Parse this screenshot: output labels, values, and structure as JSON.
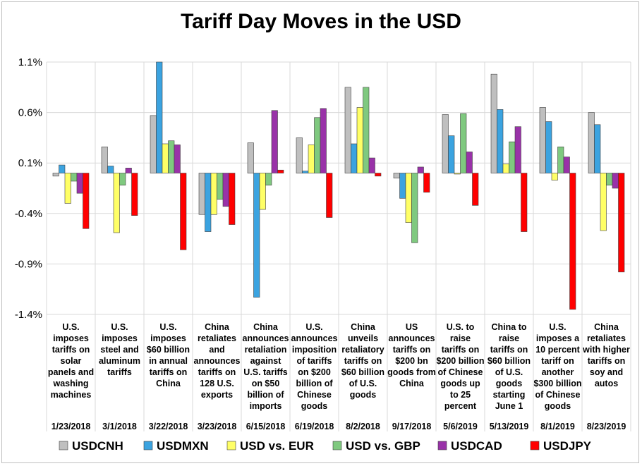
{
  "title": "Tariff Day Moves in the USD",
  "chart_data": {
    "type": "bar",
    "title": "Tariff Day Moves in the USD",
    "xlabel": "",
    "ylabel": "",
    "ylim": [
      -1.4,
      1.1
    ],
    "yticks": [
      1.1,
      0.6,
      0.1,
      -0.4,
      -0.9,
      -1.4
    ],
    "ytick_labels": [
      "1.1%",
      "0.6%",
      "0.1%",
      "-0.4%",
      "-0.9%",
      "-1.4%"
    ],
    "grid": true,
    "legend_position": "bottom",
    "categories": [
      {
        "date": "1/23/2018",
        "lines": [
          "U.S.",
          "imposes",
          "tariffs on",
          "solar",
          "panels and",
          "washing",
          "machines"
        ]
      },
      {
        "date": "3/1/2018",
        "lines": [
          "U.S.",
          "imposes",
          "steel and",
          "aluminum",
          "tariffs"
        ]
      },
      {
        "date": "3/22/2018",
        "lines": [
          "U.S.",
          "imposes",
          "$60 billion",
          "in annual",
          "tariffs on",
          "China"
        ]
      },
      {
        "date": "3/23/2018",
        "lines": [
          "China",
          "retaliates",
          "and",
          "announces",
          "tariffs on",
          "128 U.S.",
          "exports"
        ]
      },
      {
        "date": "6/15/2018",
        "lines": [
          "China",
          "announces",
          "retaliation",
          "against",
          "U.S. tariffs",
          "on $50",
          "billion of",
          "imports"
        ]
      },
      {
        "date": "6/19/2018",
        "lines": [
          "U.S.",
          "announces",
          "imposition",
          "of tariffs",
          "on $200",
          "billion of",
          "Chinese",
          "goods"
        ]
      },
      {
        "date": "8/2/2018",
        "lines": [
          "China",
          "unveils",
          "retaliatory",
          "tariffs on",
          "$60 billion",
          "of U.S.",
          "goods"
        ]
      },
      {
        "date": "9/17/2018",
        "lines": [
          "US",
          "announces",
          "tariffs on",
          "$200 bn",
          "goods from",
          "China"
        ]
      },
      {
        "date": "5/6/2019",
        "lines": [
          "U.S. to",
          "raise",
          "tariffs on",
          "$200 billion",
          "of Chinese",
          "goods up",
          "to 25",
          "percent"
        ]
      },
      {
        "date": "5/13/2019",
        "lines": [
          "China to",
          "raise",
          "tariffs on",
          "$60 billion",
          "of U.S.",
          "goods",
          "starting",
          "June 1"
        ]
      },
      {
        "date": "8/1/2019",
        "lines": [
          "U.S.",
          "imposes a",
          "10 percent",
          "tariff on",
          "another",
          "$300 billion",
          "of Chinese",
          "goods"
        ]
      },
      {
        "date": "8/23/2019",
        "lines": [
          "China",
          "retaliates",
          "with higher",
          "tariffs on",
          "soy and",
          "autos"
        ]
      }
    ],
    "series": [
      {
        "name": "USDCNH",
        "color": "#bfbfbf",
        "values": [
          -0.03,
          0.26,
          0.57,
          -0.41,
          0.3,
          0.35,
          0.85,
          -0.05,
          0.58,
          0.98,
          0.65,
          0.6
        ]
      },
      {
        "name": "USDMXN",
        "color": "#3ba3e0",
        "values": [
          0.08,
          0.07,
          1.1,
          -0.58,
          -1.23,
          0.02,
          0.29,
          -0.25,
          0.37,
          0.63,
          0.51,
          0.48
        ]
      },
      {
        "name": "USD vs. EUR",
        "color": "#ffff66",
        "values": [
          -0.3,
          -0.59,
          0.29,
          -0.41,
          -0.36,
          0.28,
          0.65,
          -0.49,
          -0.01,
          0.09,
          -0.07,
          -0.57
        ]
      },
      {
        "name": "USD vs. GBP",
        "color": "#7fc97f",
        "values": [
          -0.08,
          -0.12,
          0.32,
          -0.26,
          -0.12,
          0.55,
          0.85,
          -0.69,
          0.59,
          0.31,
          0.26,
          -0.12
        ]
      },
      {
        "name": "USDCAD",
        "color": "#9932a8",
        "values": [
          -0.2,
          0.05,
          0.28,
          -0.33,
          0.62,
          0.64,
          0.15,
          0.06,
          0.21,
          0.46,
          0.16,
          -0.15
        ]
      },
      {
        "name": "USDJPY",
        "color": "#ff0000",
        "values": [
          -0.55,
          -0.42,
          -0.76,
          -0.51,
          0.03,
          -0.44,
          -0.03,
          -0.19,
          -0.32,
          -0.58,
          -1.35,
          -0.98
        ]
      }
    ]
  }
}
